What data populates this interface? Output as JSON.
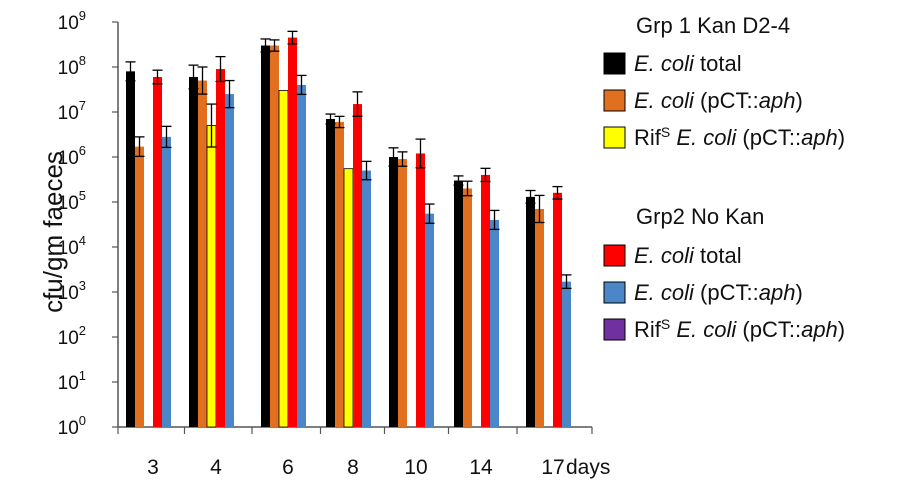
{
  "chart_data": {
    "type": "bar",
    "yscale": "log",
    "ylim": [
      1,
      1000000000
    ],
    "ylabel": "cfu/gm faeces",
    "yticks": [
      {
        "base": "10",
        "exp": "0"
      },
      {
        "base": "10",
        "exp": "1"
      },
      {
        "base": "10",
        "exp": "2"
      },
      {
        "base": "10",
        "exp": "3"
      },
      {
        "base": "10",
        "exp": "4"
      },
      {
        "base": "10",
        "exp": "5"
      },
      {
        "base": "10",
        "exp": "6"
      },
      {
        "base": "10",
        "exp": "7"
      },
      {
        "base": "10",
        "exp": "8"
      },
      {
        "base": "10",
        "exp": "9"
      }
    ],
    "categories": [
      "3",
      "4",
      "6",
      "8",
      "10",
      "14",
      "17"
    ],
    "xunit": "days",
    "groups": [
      {
        "title": "Grp 1 Kan D2-4"
      },
      {
        "title": "Grp2  No Kan"
      }
    ],
    "series": [
      {
        "group": 0,
        "italic": "E. coli",
        "plain": " total",
        "sup_prefix": "",
        "sup": "",
        "suffix_italic": "",
        "suffix_end": "",
        "color": "#000000",
        "values": [
          80000000,
          60000000,
          300000000,
          7000000,
          1000000,
          300000,
          130000
        ],
        "err": [
          130000000,
          110000000,
          420000000,
          9000000,
          1600000,
          380000,
          180000
        ]
      },
      {
        "group": 0,
        "italic": "E. coli",
        "plain": " (pCT::",
        "sup_prefix": "",
        "sup": "",
        "suffix_italic": "aph",
        "suffix_end": ")",
        "color": "#e07020",
        "values": [
          1700000,
          50000000,
          300000000,
          6000000,
          900000,
          200000,
          70000
        ],
        "err": [
          2800000,
          100000000,
          400000000,
          8000000,
          1300000,
          290000,
          140000
        ]
      },
      {
        "group": 0,
        "italic": "E. coli",
        "plain": " (pCT::",
        "sup_prefix": "Rif",
        "sup": "S",
        "suffix_italic": "aph",
        "suffix_end": ")",
        "color": "#ffff00",
        "values": [
          null,
          5000000,
          30000000,
          550000,
          null,
          null,
          null
        ],
        "err": [
          null,
          15000000,
          null,
          null,
          null,
          null,
          null
        ]
      },
      {
        "group": 1,
        "italic": "E. coli",
        "plain": " total",
        "sup_prefix": "",
        "sup": "",
        "suffix_italic": "",
        "suffix_end": "",
        "color": "#ff0000",
        "values": [
          60000000,
          90000000,
          450000000,
          15000000,
          1200000,
          400000,
          160000
        ],
        "err": [
          85000000,
          170000000,
          620000000,
          28000000,
          2500000,
          560000,
          220000
        ]
      },
      {
        "group": 1,
        "italic": "E. coli",
        "plain": " (pCT::",
        "sup_prefix": "",
        "sup": "",
        "suffix_italic": "aph",
        "suffix_end": ")",
        "color": "#4a86c8",
        "values": [
          2800000,
          25000000,
          40000000,
          500000,
          55000,
          40000,
          1700
        ],
        "err": [
          4800000,
          50000000,
          65000000,
          800000,
          90000,
          65000,
          2400
        ]
      },
      {
        "group": 1,
        "italic": "E. coli",
        "plain": " (pCT::",
        "sup_prefix": "Rif",
        "sup": "S",
        "suffix_italic": "aph",
        "suffix_end": ")",
        "color": "#7030a0",
        "values": [
          null,
          null,
          null,
          null,
          null,
          null,
          null
        ],
        "err": [
          null,
          null,
          null,
          null,
          null,
          null,
          null
        ]
      }
    ],
    "legend_position": "right"
  }
}
